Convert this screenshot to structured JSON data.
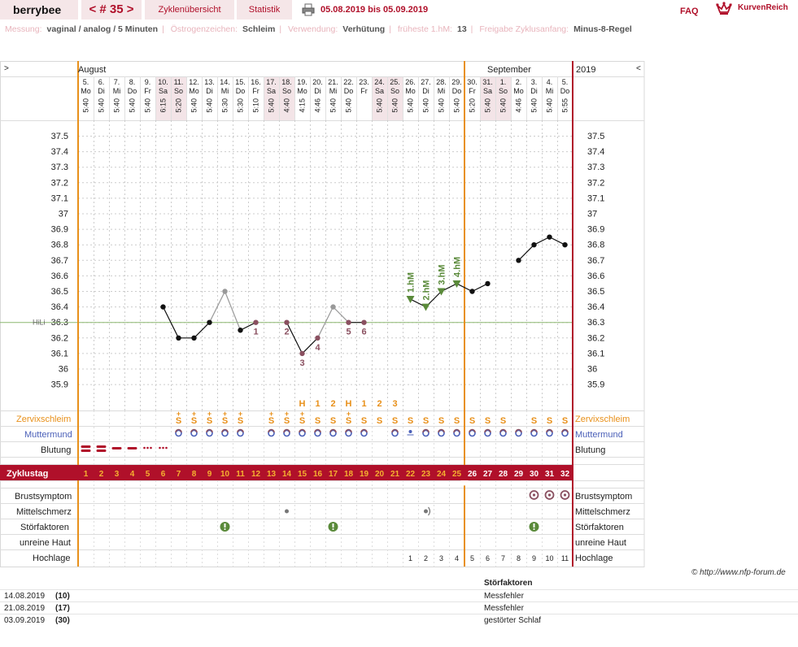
{
  "header": {
    "logo": "berrybee",
    "cycle_prev": "<",
    "cycle_label": "# 35",
    "cycle_next": ">",
    "tab_overview": "Zyklenübersicht",
    "tab_stats": "Statistik",
    "date_range": "05.08.2019 bis 05.09.2019",
    "faq": "FAQ",
    "brand": "KurvenReich"
  },
  "info": [
    {
      "label": "Messung:",
      "value": "vaginal / analog / 5 Minuten"
    },
    {
      "label": "Östrogenzeichen:",
      "value": "Schleim"
    },
    {
      "label": "Verwendung:",
      "value": "Verhütung"
    },
    {
      "label": "früheste 1.hM:",
      "value": "13"
    },
    {
      "label": "Freigabe Zyklusanfang:",
      "value": "Minus-8-Regel"
    }
  ],
  "chart_data": {
    "type": "line",
    "scroll_left": ">",
    "scroll_right": "<",
    "month_labels": [
      "August",
      "September"
    ],
    "year_label": "2019",
    "dates": [
      "5.",
      "6.",
      "7.",
      "8.",
      "9.",
      "10.",
      "11.",
      "12.",
      "13.",
      "14.",
      "15.",
      "16.",
      "17.",
      "18.",
      "19.",
      "20.",
      "21.",
      "22.",
      "23.",
      "24.",
      "25.",
      "26.",
      "27.",
      "28.",
      "29.",
      "30.",
      "31.",
      "1.",
      "2.",
      "3.",
      "4.",
      "5."
    ],
    "weekdays": [
      "Mo",
      "Di",
      "Mi",
      "Do",
      "Fr",
      "Sa",
      "So",
      "Mo",
      "Di",
      "Mi",
      "Do",
      "Fr",
      "Sa",
      "So",
      "Mo",
      "Di",
      "Mi",
      "Do",
      "Fr",
      "Sa",
      "So",
      "Mo",
      "Di",
      "Mi",
      "Do",
      "Fr",
      "Sa",
      "So",
      "Mo",
      "Di",
      "Mi",
      "Do"
    ],
    "weekend_days": [
      6,
      7,
      13,
      14,
      20,
      21,
      27,
      28
    ],
    "times": [
      "5:40",
      "5:40",
      "5:40",
      "5:40",
      "5:40",
      "6:15",
      "5:20",
      "5:40",
      "5:40",
      "5:30",
      "5:30",
      "5:10",
      "5:40",
      "4:40",
      "4:15",
      "4:46",
      "5:40",
      "5:40",
      "",
      "5:40",
      "5:40",
      "5:40",
      "5:40",
      "5:40",
      "5:40",
      "5:20",
      "5:40",
      "5:40",
      "4:46",
      "5:40",
      "5:40",
      "5:55"
    ],
    "y_ticks": [
      "37.5",
      "37.4",
      "37.3",
      "37.2",
      "37.1",
      "37",
      "36.9",
      "36.8",
      "36.7",
      "36.6",
      "36.5",
      "36.4",
      "36.3",
      "36.2",
      "36.1",
      "36",
      "35.9"
    ],
    "ylim": [
      35.84,
      37.56
    ],
    "hili_label": "HiLi",
    "hili_value": 36.3,
    "temperatures": [
      null,
      null,
      null,
      null,
      null,
      36.4,
      36.2,
      36.2,
      36.3,
      36.5,
      36.25,
      36.3,
      null,
      36.3,
      36.1,
      36.2,
      36.4,
      36.3,
      36.3,
      null,
      null,
      36.45,
      36.4,
      36.5,
      36.55,
      36.5,
      36.55,
      null,
      36.7,
      36.8,
      36.85,
      36.8
    ],
    "excluded_days": [
      10,
      17
    ],
    "connect_gap_days": [
      26
    ],
    "count_labels": [
      {
        "day": 12,
        "text": "1"
      },
      {
        "day": 14,
        "text": "2"
      },
      {
        "day": 15,
        "text": "3"
      },
      {
        "day": 16,
        "text": "4"
      },
      {
        "day": 18,
        "text": "5"
      },
      {
        "day": 19,
        "text": "6"
      }
    ],
    "hm_labels": [
      {
        "day": 22,
        "text": "1.hM"
      },
      {
        "day": 23,
        "text": "2.hM"
      },
      {
        "day": 24,
        "text": "3.hM"
      },
      {
        "day": 25,
        "text": "4.hM"
      }
    ],
    "peak_counts": [
      {
        "day": 15,
        "text": "H"
      },
      {
        "day": 16,
        "text": "1"
      },
      {
        "day": 17,
        "text": "2"
      },
      {
        "day": 18,
        "text": "H"
      },
      {
        "day": 19,
        "text": "1"
      },
      {
        "day": 20,
        "text": "2"
      },
      {
        "day": 21,
        "text": "3"
      }
    ],
    "mucus_symbol": "S",
    "mucus_plus_symbol": "+",
    "mucus_days": [
      7,
      8,
      9,
      10,
      11,
      13,
      14,
      15,
      16,
      17,
      18,
      19,
      20,
      21,
      22,
      23,
      24,
      25,
      26,
      27,
      28,
      30,
      31,
      32
    ],
    "mucus_plus_days": [
      7,
      8,
      9,
      10,
      11,
      13,
      14,
      15,
      18
    ],
    "cervix_days": [
      7,
      8,
      9,
      10,
      11,
      13,
      14,
      15,
      16,
      17,
      18,
      19,
      21,
      22,
      23,
      24,
      25,
      26,
      27,
      28,
      29,
      30,
      31,
      32
    ],
    "cervix_dot_days": [
      22
    ],
    "bleeding": [
      {
        "day": 1,
        "level": "heavy"
      },
      {
        "day": 2,
        "level": "heavy"
      },
      {
        "day": 3,
        "level": "medium"
      },
      {
        "day": 4,
        "level": "medium"
      },
      {
        "day": 5,
        "level": "light"
      },
      {
        "day": 6,
        "level": "light"
      }
    ],
    "cycle_days": [
      "1",
      "2",
      "3",
      "4",
      "5",
      "6",
      "7",
      "8",
      "9",
      "10",
      "11",
      "12",
      "13",
      "14",
      "15",
      "16",
      "17",
      "18",
      "19",
      "20",
      "21",
      "22",
      "23",
      "24",
      "25",
      "26",
      "27",
      "28",
      "29",
      "30",
      "31",
      "32"
    ],
    "breast_days": [
      30,
      31,
      32
    ],
    "midpain_days": [
      {
        "day": 14,
        "kind": "dot"
      },
      {
        "day": 23,
        "kind": "wave"
      }
    ],
    "disturbance_days": [
      10,
      17,
      30
    ],
    "highlage": [
      {
        "day": 22,
        "text": "1"
      },
      {
        "day": 23,
        "text": "2"
      },
      {
        "day": 24,
        "text": "3"
      },
      {
        "day": 25,
        "text": "4"
      },
      {
        "day": 26,
        "text": "5"
      },
      {
        "day": 27,
        "text": "6"
      },
      {
        "day": 28,
        "text": "7"
      },
      {
        "day": 29,
        "text": "8"
      },
      {
        "day": 30,
        "text": "9"
      },
      {
        "day": 31,
        "text": "10"
      },
      {
        "day": 32,
        "text": "11"
      }
    ],
    "rows": {
      "zervix_left": "Zervixschleim",
      "zervix_right": "Zervixschleim",
      "mutter_left": "Muttermund",
      "mutter_right": "Muttermund",
      "blutung_left": "Blutung",
      "blutung_right": "Blutung",
      "zyklustag": "Zyklustag",
      "brust_left": "Brustsymptom",
      "brust_right": "Brustsymptom",
      "mittel_left": "Mittelschmerz",
      "mittel_right": "Mittelschmerz",
      "stor_left": "Störfaktoren",
      "stor_right": "Störfaktoren",
      "haut_left": "unreine Haut",
      "haut_right": "unreine Haut",
      "hoch_left": "Hochlage",
      "hoch_right": "Hochlage"
    },
    "orange_line_days": [
      1,
      25
    ],
    "colors": {
      "accent": "#b0102a",
      "orange": "#e8901a",
      "hm_green": "#5a8a3a",
      "cervix_blue": "#4a5fb8",
      "grid": "#cccccc"
    }
  },
  "footer": {
    "credit": "© http://www.nfp-forum.de",
    "stor_title": "Störfaktoren",
    "stor_rows": [
      {
        "date": "14.08.2019",
        "num": "(10)",
        "text": "Messfehler"
      },
      {
        "date": "21.08.2019",
        "num": "(17)",
        "text": "Messfehler"
      },
      {
        "date": "03.09.2019",
        "num": "(30)",
        "text": "gestörter Schlaf"
      }
    ]
  }
}
